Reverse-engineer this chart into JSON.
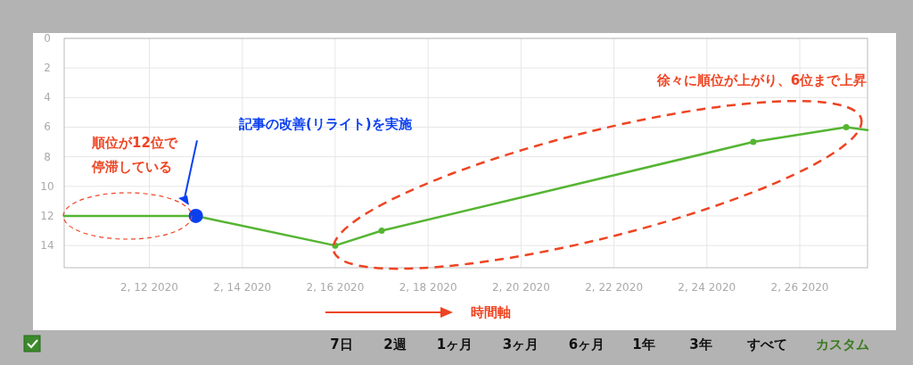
{
  "chart_data": {
    "type": "line",
    "xlim": [
      "2020-02-10T04:00",
      "2020-02-27T11:00"
    ],
    "xticks": [
      {
        "value": "2020-02-12",
        "label": "2, 12 2020"
      },
      {
        "value": "2020-02-14",
        "label": "2, 14 2020"
      },
      {
        "value": "2020-02-16",
        "label": "2, 16 2020"
      },
      {
        "value": "2020-02-18",
        "label": "2, 18 2020"
      },
      {
        "value": "2020-02-20",
        "label": "2, 20 2020"
      },
      {
        "value": "2020-02-22",
        "label": "2, 22 2020"
      },
      {
        "value": "2020-02-24",
        "label": "2, 24 2020"
      },
      {
        "value": "2020-02-26",
        "label": "2, 26 2020"
      }
    ],
    "ylim": [
      15.5,
      0
    ],
    "yticks": [
      0,
      2,
      4,
      6,
      8,
      10,
      12,
      14
    ],
    "grid": true,
    "marker": "circle",
    "line_style": "solid",
    "series": [
      {
        "color": "#55b532",
        "x": [
          "2020-02-10T04:00",
          "2020-02-13",
          "2020-02-16",
          "2020-02-17",
          "2020-02-25",
          "2020-02-27",
          "2020-02-27T11:00"
        ],
        "values": [
          12,
          12,
          14,
          13,
          7,
          6,
          6.2
        ]
      },
      {
        "type": "scatter",
        "color": "#0a3ff0",
        "x": [
          "2020-02-13"
        ],
        "values": [
          12
        ]
      }
    ],
    "annotations": [
      "順位が12位で停滞している",
      "記事の改善(リライト)を実施",
      {
        "text": "徐々に順位が上がり、6位まで上昇",
        "x": "2020-02-27",
        "y": 6
      },
      "時間軸",
      "7日",
      "2週",
      "1ヶ月",
      "3ヶ月",
      "6ヶ月",
      "1年",
      "3年",
      "すべて",
      "カスタム"
    ]
  }
}
